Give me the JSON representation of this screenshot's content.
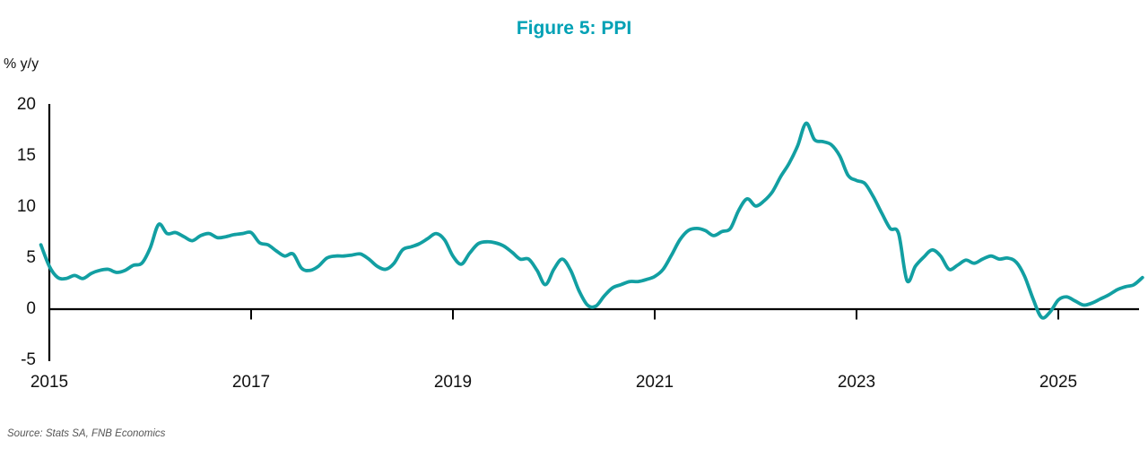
{
  "page": {
    "title": "Figure 5: PPI",
    "unit_label": "% y/y",
    "source_note": "Source: Stats SA, FNB Economics"
  },
  "colors": {
    "title_teal": "#00a1b5",
    "line_teal": "#129fa2",
    "axis_black": "#000000",
    "source_gray": "#555555"
  },
  "chart_data": {
    "type": "line",
    "title": "Figure 5: PPI",
    "ylabel": "% y/y",
    "xlabel": "",
    "source": "Source: Stats SA, FNB Economics",
    "grid": false,
    "legend_position": "none",
    "ylim": [
      -5,
      20
    ],
    "y_ticks": [
      20,
      15,
      10,
      5,
      0,
      -5
    ],
    "x_tick_years": [
      2015,
      2017,
      2019,
      2021,
      2023,
      2025
    ],
    "series": [
      {
        "name": "PPI (% y/y)",
        "frequency": "monthly",
        "start_month": "2014-12",
        "end_month": "2025-11",
        "values": [
          6.3,
          4.2,
          3.1,
          3.0,
          3.3,
          3.0,
          3.5,
          3.8,
          3.9,
          3.6,
          3.8,
          4.3,
          4.5,
          6.0,
          8.3,
          7.4,
          7.5,
          7.1,
          6.7,
          7.2,
          7.4,
          7.0,
          7.1,
          7.3,
          7.4,
          7.5,
          6.5,
          6.3,
          5.7,
          5.2,
          5.4,
          4.0,
          3.8,
          4.2,
          5.0,
          5.2,
          5.2,
          5.3,
          5.4,
          4.9,
          4.2,
          3.9,
          4.5,
          5.8,
          6.1,
          6.4,
          6.9,
          7.4,
          6.8,
          5.2,
          4.4,
          5.5,
          6.4,
          6.6,
          6.5,
          6.2,
          5.6,
          4.9,
          4.9,
          3.8,
          2.4,
          3.9,
          4.9,
          3.8,
          1.8,
          0.4,
          0.3,
          1.3,
          2.1,
          2.4,
          2.7,
          2.7,
          2.9,
          3.2,
          3.9,
          5.3,
          6.8,
          7.7,
          7.9,
          7.7,
          7.2,
          7.6,
          7.9,
          9.7,
          10.8,
          10.1,
          10.6,
          11.5,
          13.0,
          14.3,
          16.0,
          18.2,
          16.6,
          16.4,
          16.1,
          15.0,
          13.1,
          12.6,
          12.3,
          11.0,
          9.4,
          7.9,
          7.4,
          2.8,
          4.2,
          5.1,
          5.8,
          5.2,
          3.9,
          4.3,
          4.8,
          4.5,
          4.9,
          5.2,
          4.9,
          5.0,
          4.6,
          3.2,
          1.0,
          -0.8,
          -0.3,
          0.9,
          1.2,
          0.8,
          0.4,
          0.6,
          1.0,
          1.4,
          1.9,
          2.2,
          2.4,
          3.1
        ]
      }
    ]
  }
}
